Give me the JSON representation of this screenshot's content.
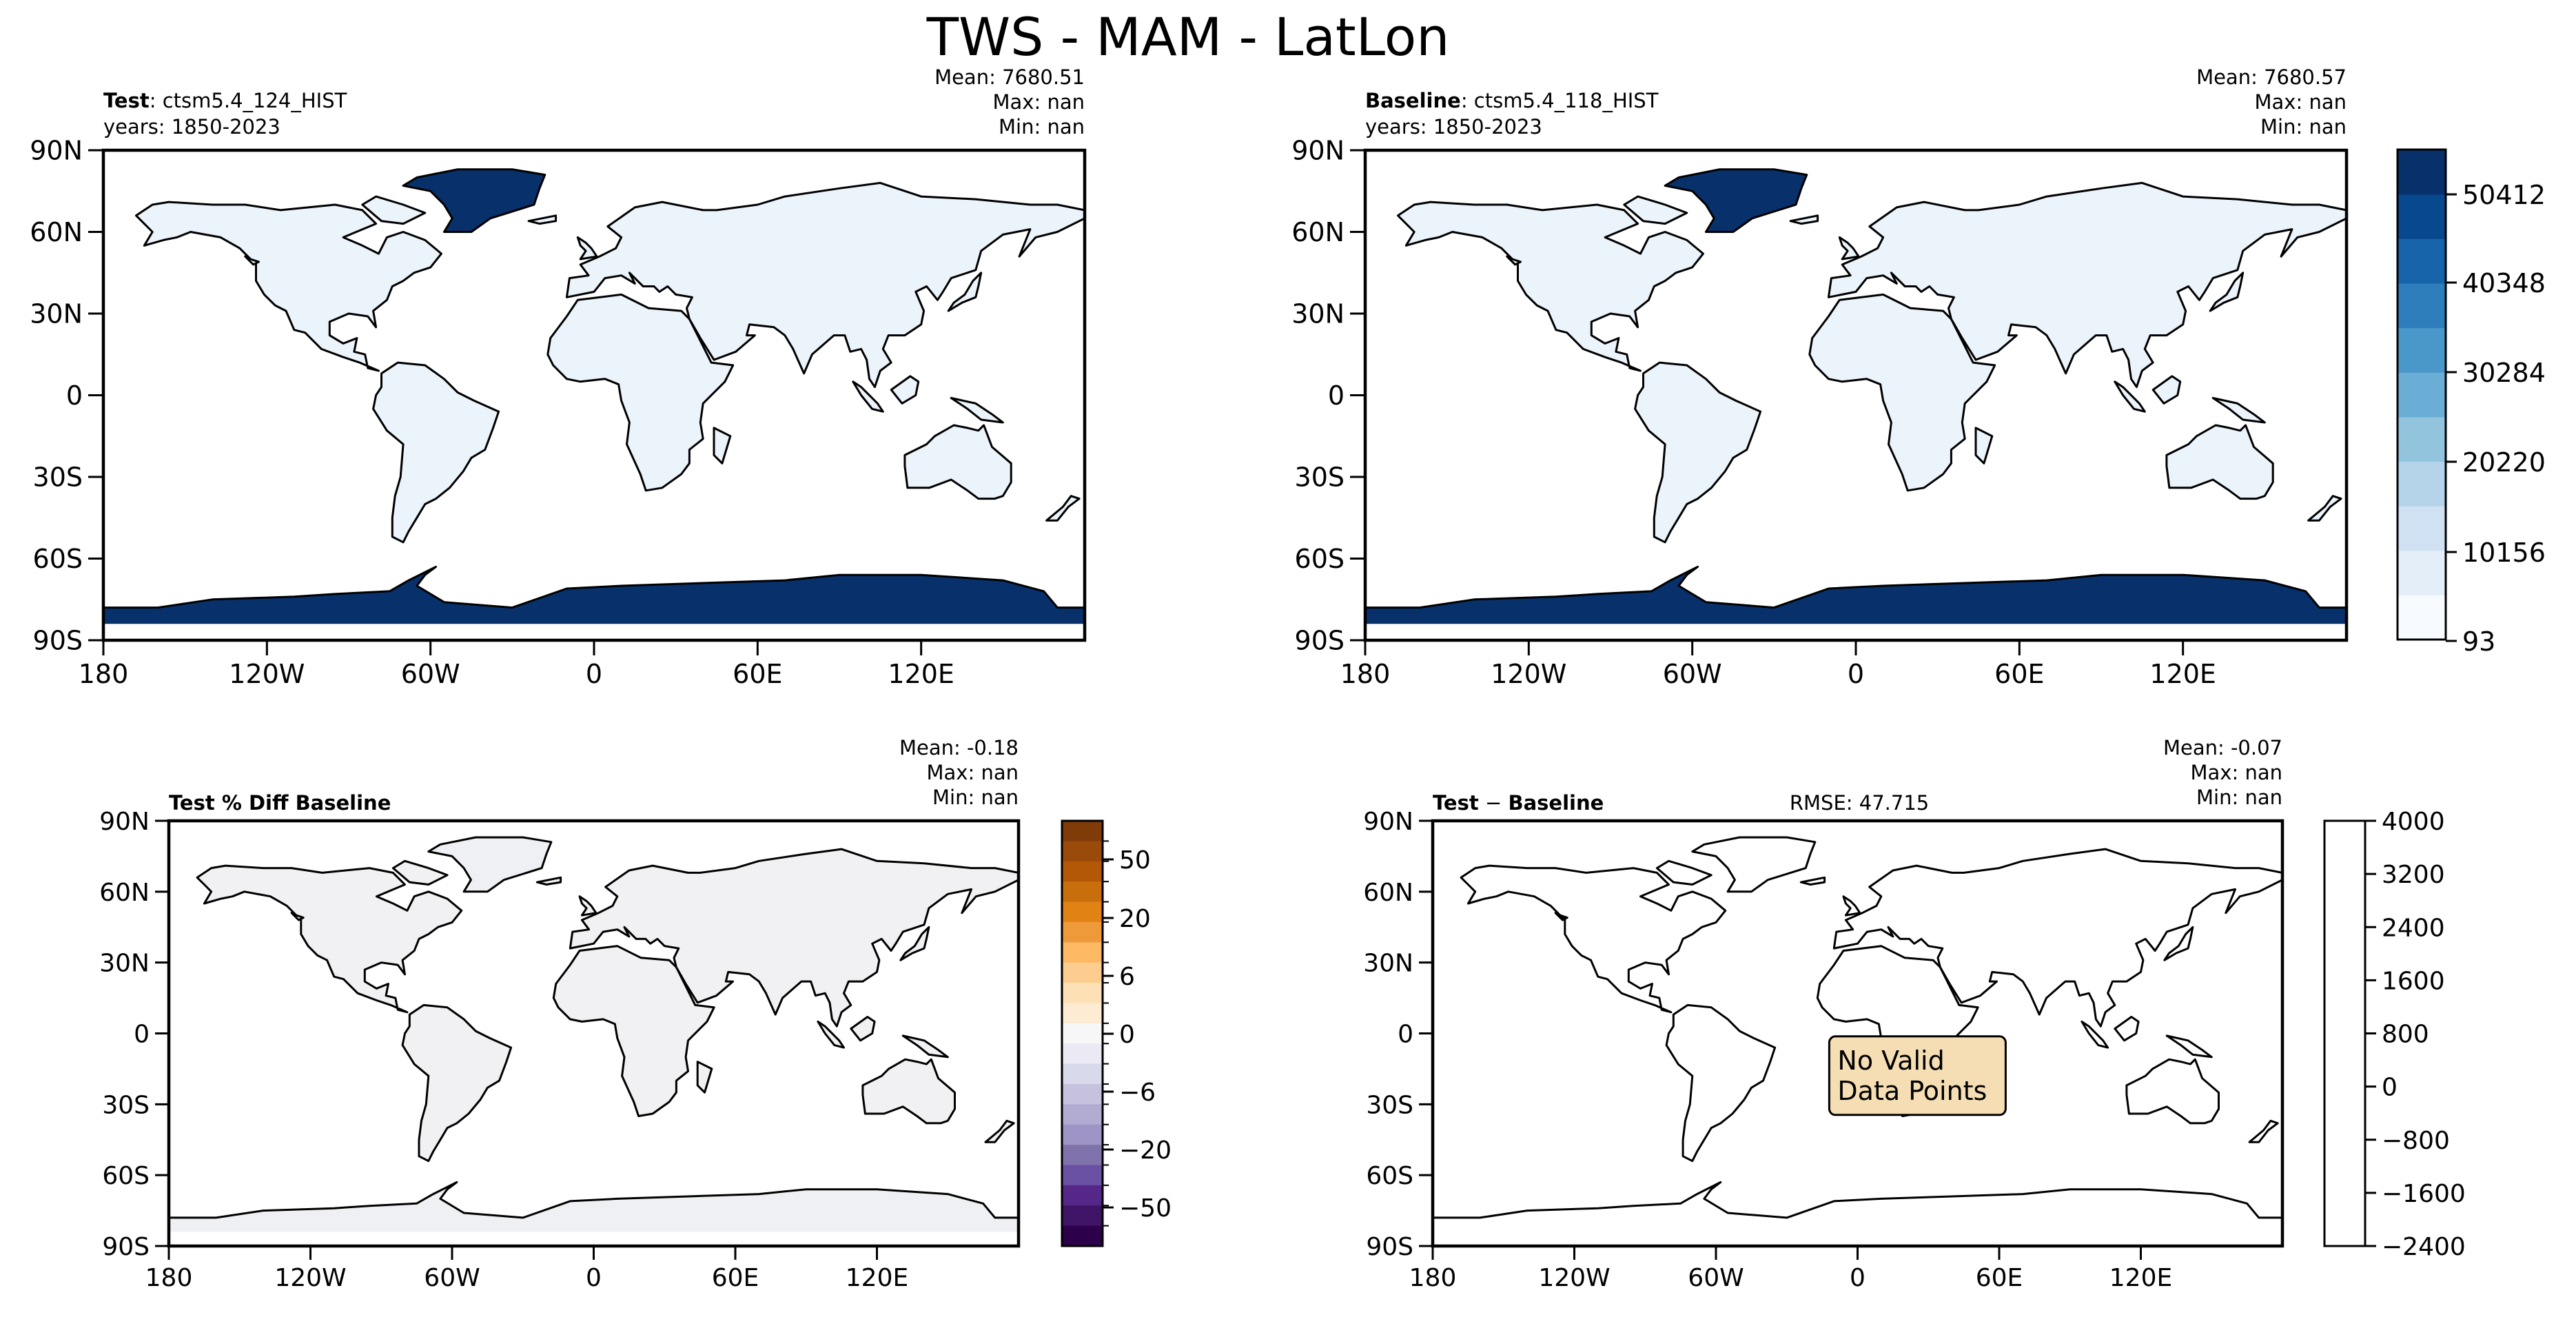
{
  "figure": {
    "title": "TWS - MAM - LatLon"
  },
  "chart_data": [
    {
      "type": "heatmap",
      "panel": "test",
      "label_bold": "Test",
      "label_rest": ": ctsm5.4_124_HIST",
      "years": "years: 1850-2023",
      "stats": {
        "mean": "Mean: 7680.51",
        "max": "Max:   nan",
        "min": "Min:   nan"
      },
      "x_ticks": [
        "180",
        "120W",
        "60W",
        "0",
        "60E",
        "120E"
      ],
      "y_ticks": [
        "90N",
        "60N",
        "30N",
        "0",
        "30S",
        "60S",
        "90S"
      ],
      "xlim": [
        -180,
        180
      ],
      "ylim": [
        -90,
        90
      ],
      "land_color": "#ebf3fb",
      "ice_color": "#08306b"
    },
    {
      "type": "heatmap",
      "panel": "baseline",
      "label_bold": "Baseline",
      "label_rest": ": ctsm5.4_118_HIST",
      "years": "years: 1850-2023",
      "stats": {
        "mean": "Mean: 7680.57",
        "max": "Max:   nan",
        "min": "Min:   nan"
      },
      "x_ticks": [
        "180",
        "120W",
        "60W",
        "0",
        "60E",
        "120E"
      ],
      "y_ticks": [
        "90N",
        "60N",
        "30N",
        "0",
        "30S",
        "60S",
        "90S"
      ],
      "xlim": [
        -180,
        180
      ],
      "ylim": [
        -90,
        90
      ],
      "land_color": "#ebf3fb",
      "ice_color": "#08306b",
      "colorbar": {
        "labels": [
          "50412",
          "40348",
          "30284",
          "20220",
          "10156",
          "93"
        ],
        "colors": [
          "#f7fbff",
          "#e3eef9",
          "#cfe1f2",
          "#b5d4e9",
          "#93c4de",
          "#6aaed6",
          "#4a98c9",
          "#2e7ebc",
          "#1764ab",
          "#08488e",
          "#08306b"
        ]
      }
    },
    {
      "type": "heatmap",
      "panel": "pct_diff",
      "label_bold": "Test % Diff Baseline",
      "stats": {
        "mean": "Mean: -0.18",
        "max": "Max:   nan",
        "min": "Min:   nan"
      },
      "x_ticks": [
        "180",
        "120W",
        "60W",
        "0",
        "60E",
        "120E"
      ],
      "y_ticks": [
        "90N",
        "60N",
        "30N",
        "0",
        "30S",
        "60S",
        "90S"
      ],
      "xlim": [
        -180,
        180
      ],
      "ylim": [
        -90,
        90
      ],
      "land_color": "#f1f0f2",
      "ice_color": "#eff0f3",
      "colorbar": {
        "labels": [
          "50",
          "20",
          "6",
          "0",
          "−6",
          "−20",
          "−50"
        ],
        "colors": [
          "#7f3b08",
          "#9a4a09",
          "#b35806",
          "#c96e0c",
          "#e08214",
          "#ee9a3a",
          "#fdb863",
          "#fdcd90",
          "#fee0b6",
          "#fdebd3",
          "#f7f7f7",
          "#ebe9f3",
          "#d8daeb",
          "#c6c2de",
          "#b2abd2",
          "#9e94c6",
          "#8073ac",
          "#6a51a3",
          "#542788",
          "#3f1466",
          "#2d004b"
        ]
      }
    },
    {
      "type": "heatmap",
      "panel": "diff",
      "label_bold": "Test",
      "label_minus": " − ",
      "label_bold2": "Baseline",
      "rmse": "RMSE: 47.715",
      "stats": {
        "mean": "Mean: -0.07",
        "max": "Max:   nan",
        "min": "Min:   nan"
      },
      "x_ticks": [
        "180",
        "120W",
        "60W",
        "0",
        "60E",
        "120E"
      ],
      "y_ticks": [
        "90N",
        "60N",
        "30N",
        "0",
        "30S",
        "60S",
        "90S"
      ],
      "xlim": [
        -180,
        180
      ],
      "ylim": [
        -90,
        90
      ],
      "annotation": [
        "No Valid",
        "Data Points"
      ],
      "annotation_bg": "#f5deb3",
      "colorbar": {
        "labels": [
          "4000",
          "3200",
          "2400",
          "1600",
          "800",
          "0",
          "−800",
          "−1600",
          "−2400"
        ]
      }
    }
  ]
}
